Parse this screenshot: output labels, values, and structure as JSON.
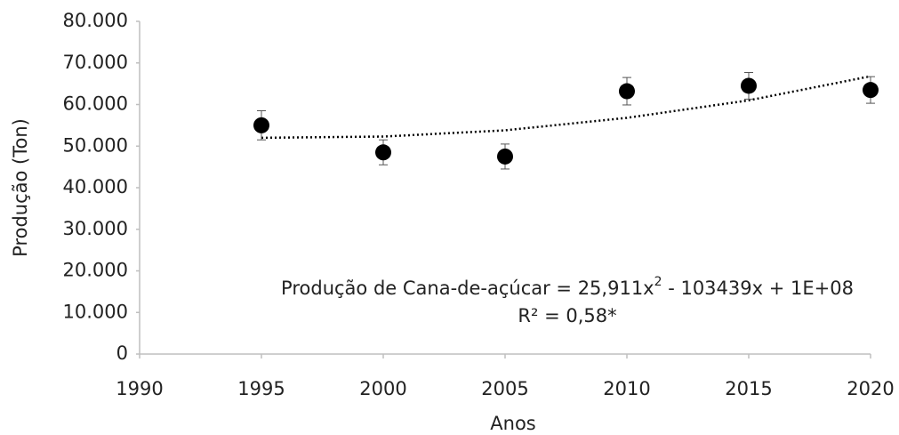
{
  "chart_data": {
    "type": "scatter",
    "x_label": "Anos",
    "y_label": "Produção (Ton)",
    "x": [
      1995,
      2000,
      2005,
      2010,
      2015,
      2020
    ],
    "values": [
      55000,
      48500,
      47500,
      63200,
      64500,
      63500
    ],
    "errors": [
      3500,
      3000,
      3000,
      3300,
      3200,
      3200
    ],
    "trendline_values": [
      52000,
      52300,
      53800,
      56800,
      61000,
      66800
    ],
    "color": "#000000",
    "trendline_color": "#000000",
    "xlim": [
      1990,
      2020
    ],
    "xticks": [
      1990,
      1995,
      2000,
      2005,
      2010,
      2015,
      2020
    ],
    "ylim": [
      0,
      80000
    ],
    "yticks": [
      0,
      {
        "value": 10000,
        "label": "10.000"
      },
      {
        "value": 20000,
        "label": "20.000"
      },
      {
        "value": 30000,
        "label": "30.000"
      },
      {
        "value": 40000,
        "label": "40.000"
      },
      {
        "value": 50000,
        "label": "50.000"
      },
      {
        "value": 60000,
        "label": "60.000"
      },
      {
        "value": 70000,
        "label": "70.000"
      },
      {
        "value": 80000,
        "label": "80.000"
      }
    ],
    "grid": false,
    "equation": [
      "Produção de Cana-de-açúcar = 25,911x",
      "2",
      " - 103439x + 1E+08"
    ],
    "r_squared": "R² = 0,58*"
  }
}
